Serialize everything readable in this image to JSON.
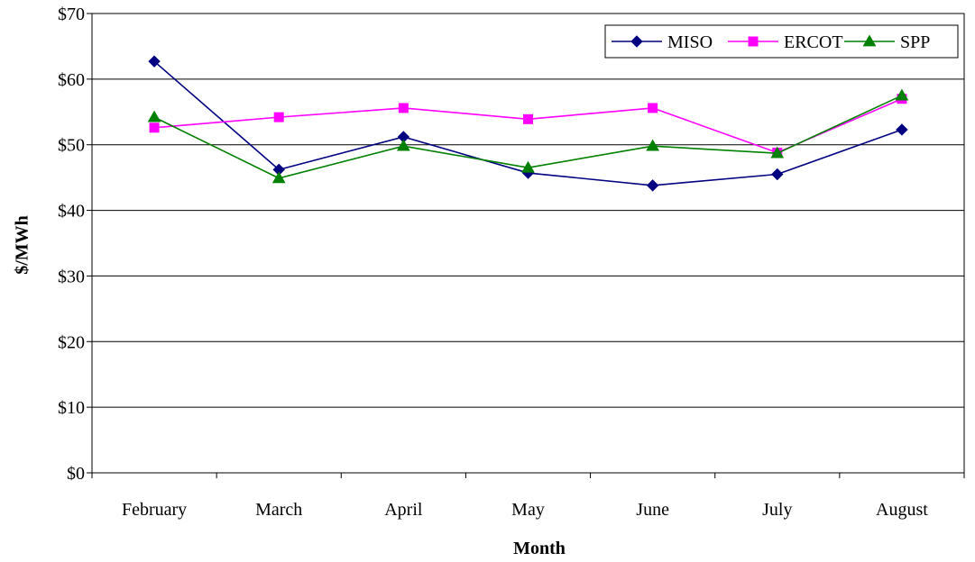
{
  "chart_data": {
    "type": "line",
    "categories": [
      "February",
      "March",
      "April",
      "May",
      "June",
      "July",
      "August"
    ],
    "series": [
      {
        "name": "MISO",
        "values": [
          62.7,
          46.2,
          51.2,
          45.7,
          43.8,
          45.5,
          52.3
        ],
        "color": "#000080",
        "marker": "diamond"
      },
      {
        "name": "ERCOT",
        "values": [
          52.6,
          54.2,
          55.6,
          53.9,
          55.6,
          48.8,
          57.0
        ],
        "color": "#FF00FF",
        "marker": "square"
      },
      {
        "name": "SPP",
        "values": [
          54.2,
          44.9,
          49.8,
          46.5,
          49.8,
          48.7,
          57.5
        ],
        "color": "#008000",
        "marker": "triangle"
      }
    ],
    "xlabel": "Month",
    "ylabel": "$/MWh",
    "ylim": [
      0,
      70
    ],
    "yticks": [
      0,
      10,
      20,
      30,
      40,
      50,
      60,
      70
    ],
    "ytick_labels": [
      "$0",
      "$10",
      "$20",
      "$30",
      "$40",
      "$50",
      "$60",
      "$70"
    ],
    "grid": "horizontal",
    "legend": "top-right"
  }
}
